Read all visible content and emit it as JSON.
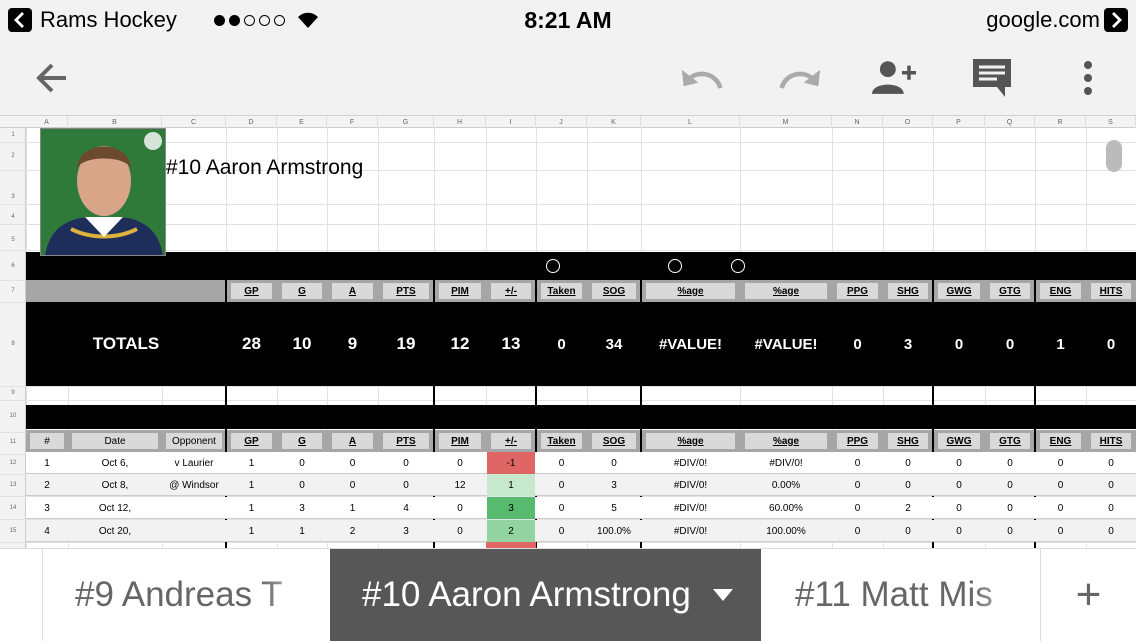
{
  "status_bar": {
    "app_name": "Rams Hockey",
    "time": "8:21 AM",
    "site": "google.com",
    "signal_bars": 2
  },
  "toolbar": {
    "buttons": [
      "back-arrow-icon",
      "undo-icon",
      "redo-icon",
      "add-person-icon",
      "comment-icon",
      "more-vert-icon"
    ]
  },
  "sheet": {
    "column_letters": [
      "A",
      "B",
      "C",
      "D",
      "E",
      "F",
      "G",
      "H",
      "I",
      "J",
      "K",
      "L",
      "M",
      "N",
      "O",
      "P",
      "Q",
      "R",
      "S"
    ],
    "row_numbers": [
      "1",
      "2",
      "3",
      "4",
      "5",
      "6",
      "7",
      "8",
      "9",
      "10",
      "11",
      "12",
      "13",
      "14",
      "15"
    ],
    "player_name": "#10 Aaron Armstrong",
    "stat_headers": [
      "GP",
      "G",
      "A",
      "PTS",
      "PIM",
      "+/-",
      "Taken",
      "SOG",
      "%age",
      "%age",
      "PPG",
      "SHG",
      "GWG",
      "GTG",
      "ENG",
      "HITS"
    ],
    "totals_label": "TOTALS",
    "totals": [
      "28",
      "10",
      "9",
      "19",
      "12",
      "13",
      "0",
      "34",
      "#VALUE!",
      "#VALUE!",
      "0",
      "3",
      "0",
      "0",
      "1",
      "0"
    ],
    "game_headers": [
      "#",
      "Date",
      "Opponent"
    ],
    "games": [
      {
        "num": "1",
        "date": "Oct 6,",
        "opp": "v Laurier",
        "stats": [
          "1",
          "0",
          "0",
          "0",
          "0",
          "-1",
          "0",
          "0",
          "#DIV/0!",
          "#DIV/0!",
          "0",
          "0",
          "0",
          "0",
          "0",
          "0"
        ],
        "pm_color": "#e06666"
      },
      {
        "num": "2",
        "date": "Oct 8,",
        "opp": "@ Windsor",
        "stats": [
          "1",
          "0",
          "0",
          "0",
          "12",
          "1",
          "0",
          "3",
          "#DIV/0!",
          "0.00%",
          "0",
          "0",
          "0",
          "0",
          "0",
          "0"
        ],
        "pm_color": "#c6e9cd"
      },
      {
        "num": "3",
        "date": "Oct 12,",
        "opp": "",
        "stats": [
          "1",
          "3",
          "1",
          "4",
          "0",
          "3",
          "0",
          "5",
          "#DIV/0!",
          "60.00%",
          "0",
          "2",
          "0",
          "0",
          "0",
          "0"
        ],
        "pm_color": "#57bb6f"
      },
      {
        "num": "4",
        "date": "Oct 20,",
        "opp": "",
        "stats": [
          "1",
          "1",
          "2",
          "3",
          "0",
          "2",
          "0",
          "100.0%",
          "#DIV/0!",
          "100.00%",
          "0",
          "0",
          "0",
          "0",
          "0",
          "0"
        ],
        "pm_color": "#92d4a1"
      }
    ]
  },
  "tabs": [
    {
      "label": "#9 Andreas T"
    },
    {
      "label": "#10 Aaron Armstrong"
    },
    {
      "label": "#11 Matt Mis"
    },
    {
      "label": "+"
    }
  ],
  "colors": {
    "header_black": "#000000",
    "gray": "#a6a6a6",
    "active_tab": "#575757",
    "negative": "#e06666"
  }
}
